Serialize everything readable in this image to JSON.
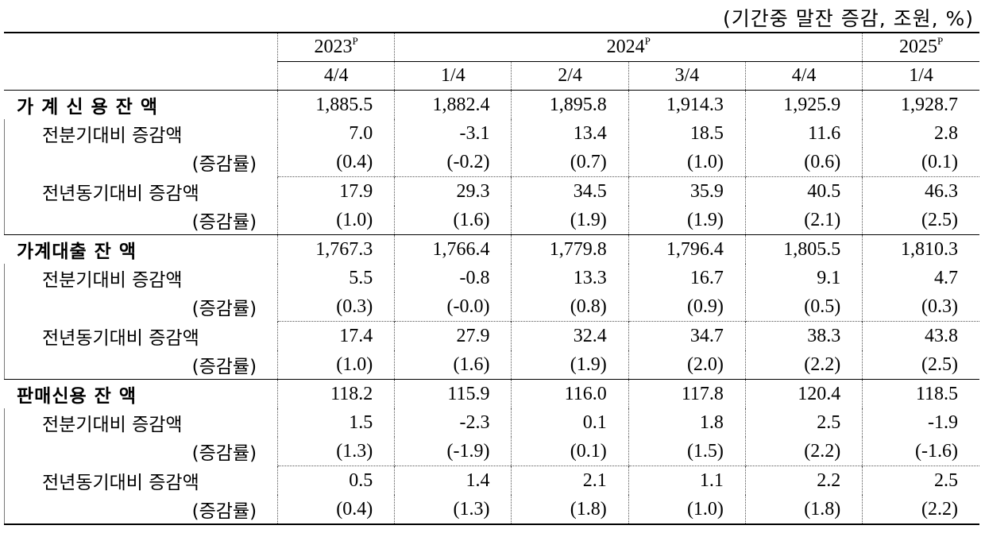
{
  "unit_note": "(기간중 말잔 증감, 조원, %)",
  "header": {
    "years": [
      {
        "year": "2023",
        "mark": "P"
      },
      {
        "year": "2024",
        "mark": "P"
      },
      {
        "year": "2025",
        "mark": "P"
      }
    ],
    "quarters": [
      "4/4",
      "1/4",
      "2/4",
      "3/4",
      "4/4",
      "1/4"
    ]
  },
  "sections": [
    {
      "title": "가 계 신 용  잔 액",
      "values": [
        "1,885.5",
        "1,882.4",
        "1,895.8",
        "1,914.3",
        "1,925.9",
        "1,928.7"
      ],
      "qoq_label": "전분기대비 증감액",
      "qoq": [
        "7.0",
        "-3.1",
        "13.4",
        "18.5",
        "11.6",
        "2.8"
      ],
      "qoq_rate_label": "(증감률)",
      "qoq_rate": [
        "(0.4)",
        "(-0.2)",
        "(0.7)",
        "(1.0)",
        "(0.6)",
        "(0.1)"
      ],
      "yoy_label": "전년동기대비 증감액",
      "yoy": [
        "17.9",
        "29.3",
        "34.5",
        "35.9",
        "40.5",
        "46.3"
      ],
      "yoy_rate_label": "(증감률)",
      "yoy_rate": [
        "(1.0)",
        "(1.6)",
        "(1.9)",
        "(1.9)",
        "(2.1)",
        "(2.5)"
      ]
    },
    {
      "title": "가계대출  잔 액",
      "values": [
        "1,767.3",
        "1,766.4",
        "1,779.8",
        "1,796.4",
        "1,805.5",
        "1,810.3"
      ],
      "qoq_label": "전분기대비 증감액",
      "qoq": [
        "5.5",
        "-0.8",
        "13.3",
        "16.7",
        "9.1",
        "4.7"
      ],
      "qoq_rate_label": "(증감률)",
      "qoq_rate": [
        "(0.3)",
        "(-0.0)",
        "(0.8)",
        "(0.9)",
        "(0.5)",
        "(0.3)"
      ],
      "yoy_label": "전년동기대비 증감액",
      "yoy": [
        "17.4",
        "27.9",
        "32.4",
        "34.7",
        "38.3",
        "43.8"
      ],
      "yoy_rate_label": "(증감률)",
      "yoy_rate": [
        "(1.0)",
        "(1.6)",
        "(1.9)",
        "(2.0)",
        "(2.2)",
        "(2.5)"
      ]
    },
    {
      "title": "판매신용  잔 액",
      "values": [
        "118.2",
        "115.9",
        "116.0",
        "117.8",
        "120.4",
        "118.5"
      ],
      "qoq_label": "전분기대비 증감액",
      "qoq": [
        "1.5",
        "-2.3",
        "0.1",
        "1.8",
        "2.5",
        "-1.9"
      ],
      "qoq_rate_label": "(증감률)",
      "qoq_rate": [
        "(1.3)",
        "(-1.9)",
        "(0.1)",
        "(1.5)",
        "(2.2)",
        "(-1.6)"
      ],
      "yoy_label": "전년동기대비 증감액",
      "yoy": [
        "0.5",
        "1.4",
        "2.1",
        "1.1",
        "2.2",
        "2.5"
      ],
      "yoy_rate_label": "(증감률)",
      "yoy_rate": [
        "(0.4)",
        "(1.3)",
        "(1.8)",
        "(1.0)",
        "(1.8)",
        "(2.2)"
      ]
    }
  ]
}
